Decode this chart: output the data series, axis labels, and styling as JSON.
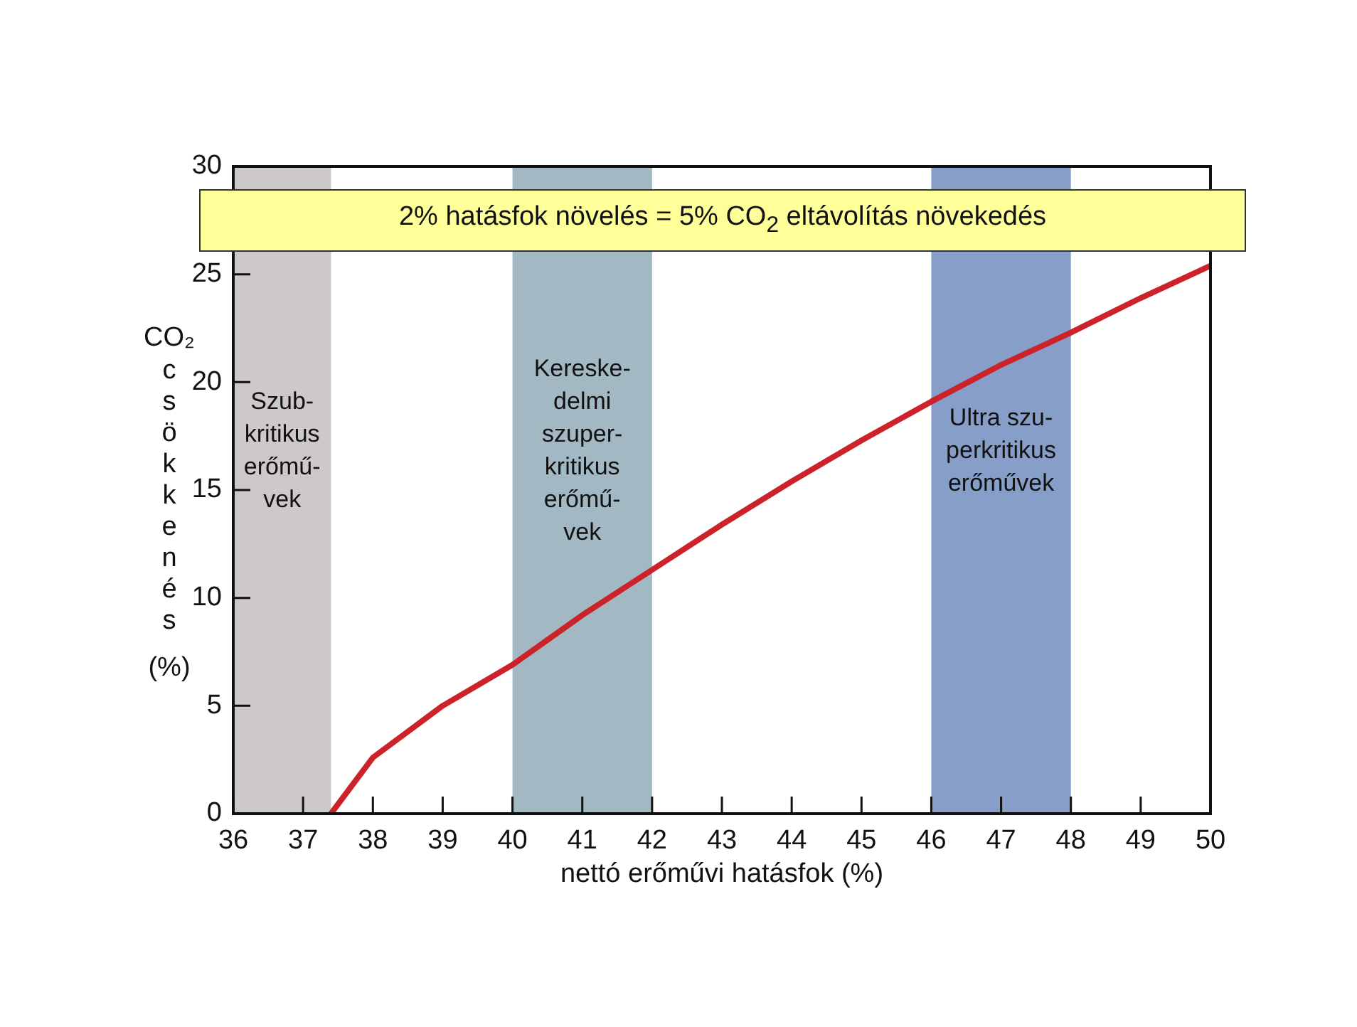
{
  "chart_data": {
    "type": "line",
    "xlabel": "nettó erőművi hatásfok (%)",
    "ylabel": "CO₂ csökkenés (%)",
    "annotations": [
      "2% hatásfok növelés = 5% CO$_{2}$ eltávolítás növekedés"
    ],
    "x": [
      37.4,
      38,
      39,
      40,
      41,
      42,
      43,
      44,
      45,
      46,
      47,
      48,
      49,
      50
    ],
    "series": [
      {
        "color": "#cc2229",
        "values": [
          0,
          2.6,
          5.0,
          6.9,
          9.2,
          11.3,
          13.4,
          15.4,
          17.3,
          19.1,
          20.8,
          22.3,
          23.9,
          25.4
        ]
      }
    ],
    "xlim": [
      36,
      50
    ],
    "xticks": [
      36,
      37,
      38,
      39,
      40,
      41,
      42,
      43,
      44,
      45,
      46,
      47,
      48,
      49,
      50
    ],
    "ylim": [
      0,
      30
    ],
    "yticks": [
      0,
      5,
      10,
      15,
      20,
      25,
      30
    ],
    "bands": [
      {
        "axis": "x",
        "from": 36,
        "to": 37.4,
        "label": "Szub-\nkritikus\nerőmű-\nvek",
        "color": "#cdc8ca"
      },
      {
        "axis": "x",
        "from": 40,
        "to": 42,
        "label": "Kereske-\ndelmi\nszuper-\nkritikus\nerőmű-\nvek",
        "color": "#a2b8c3"
      },
      {
        "axis": "x",
        "from": 46,
        "to": 48,
        "label": "Ultra szu-\nperkritikus\nerőművek",
        "color": "#869ec8"
      }
    ],
    "grid": false,
    "legend": false,
    "marker": "none",
    "line_style": "solid"
  }
}
